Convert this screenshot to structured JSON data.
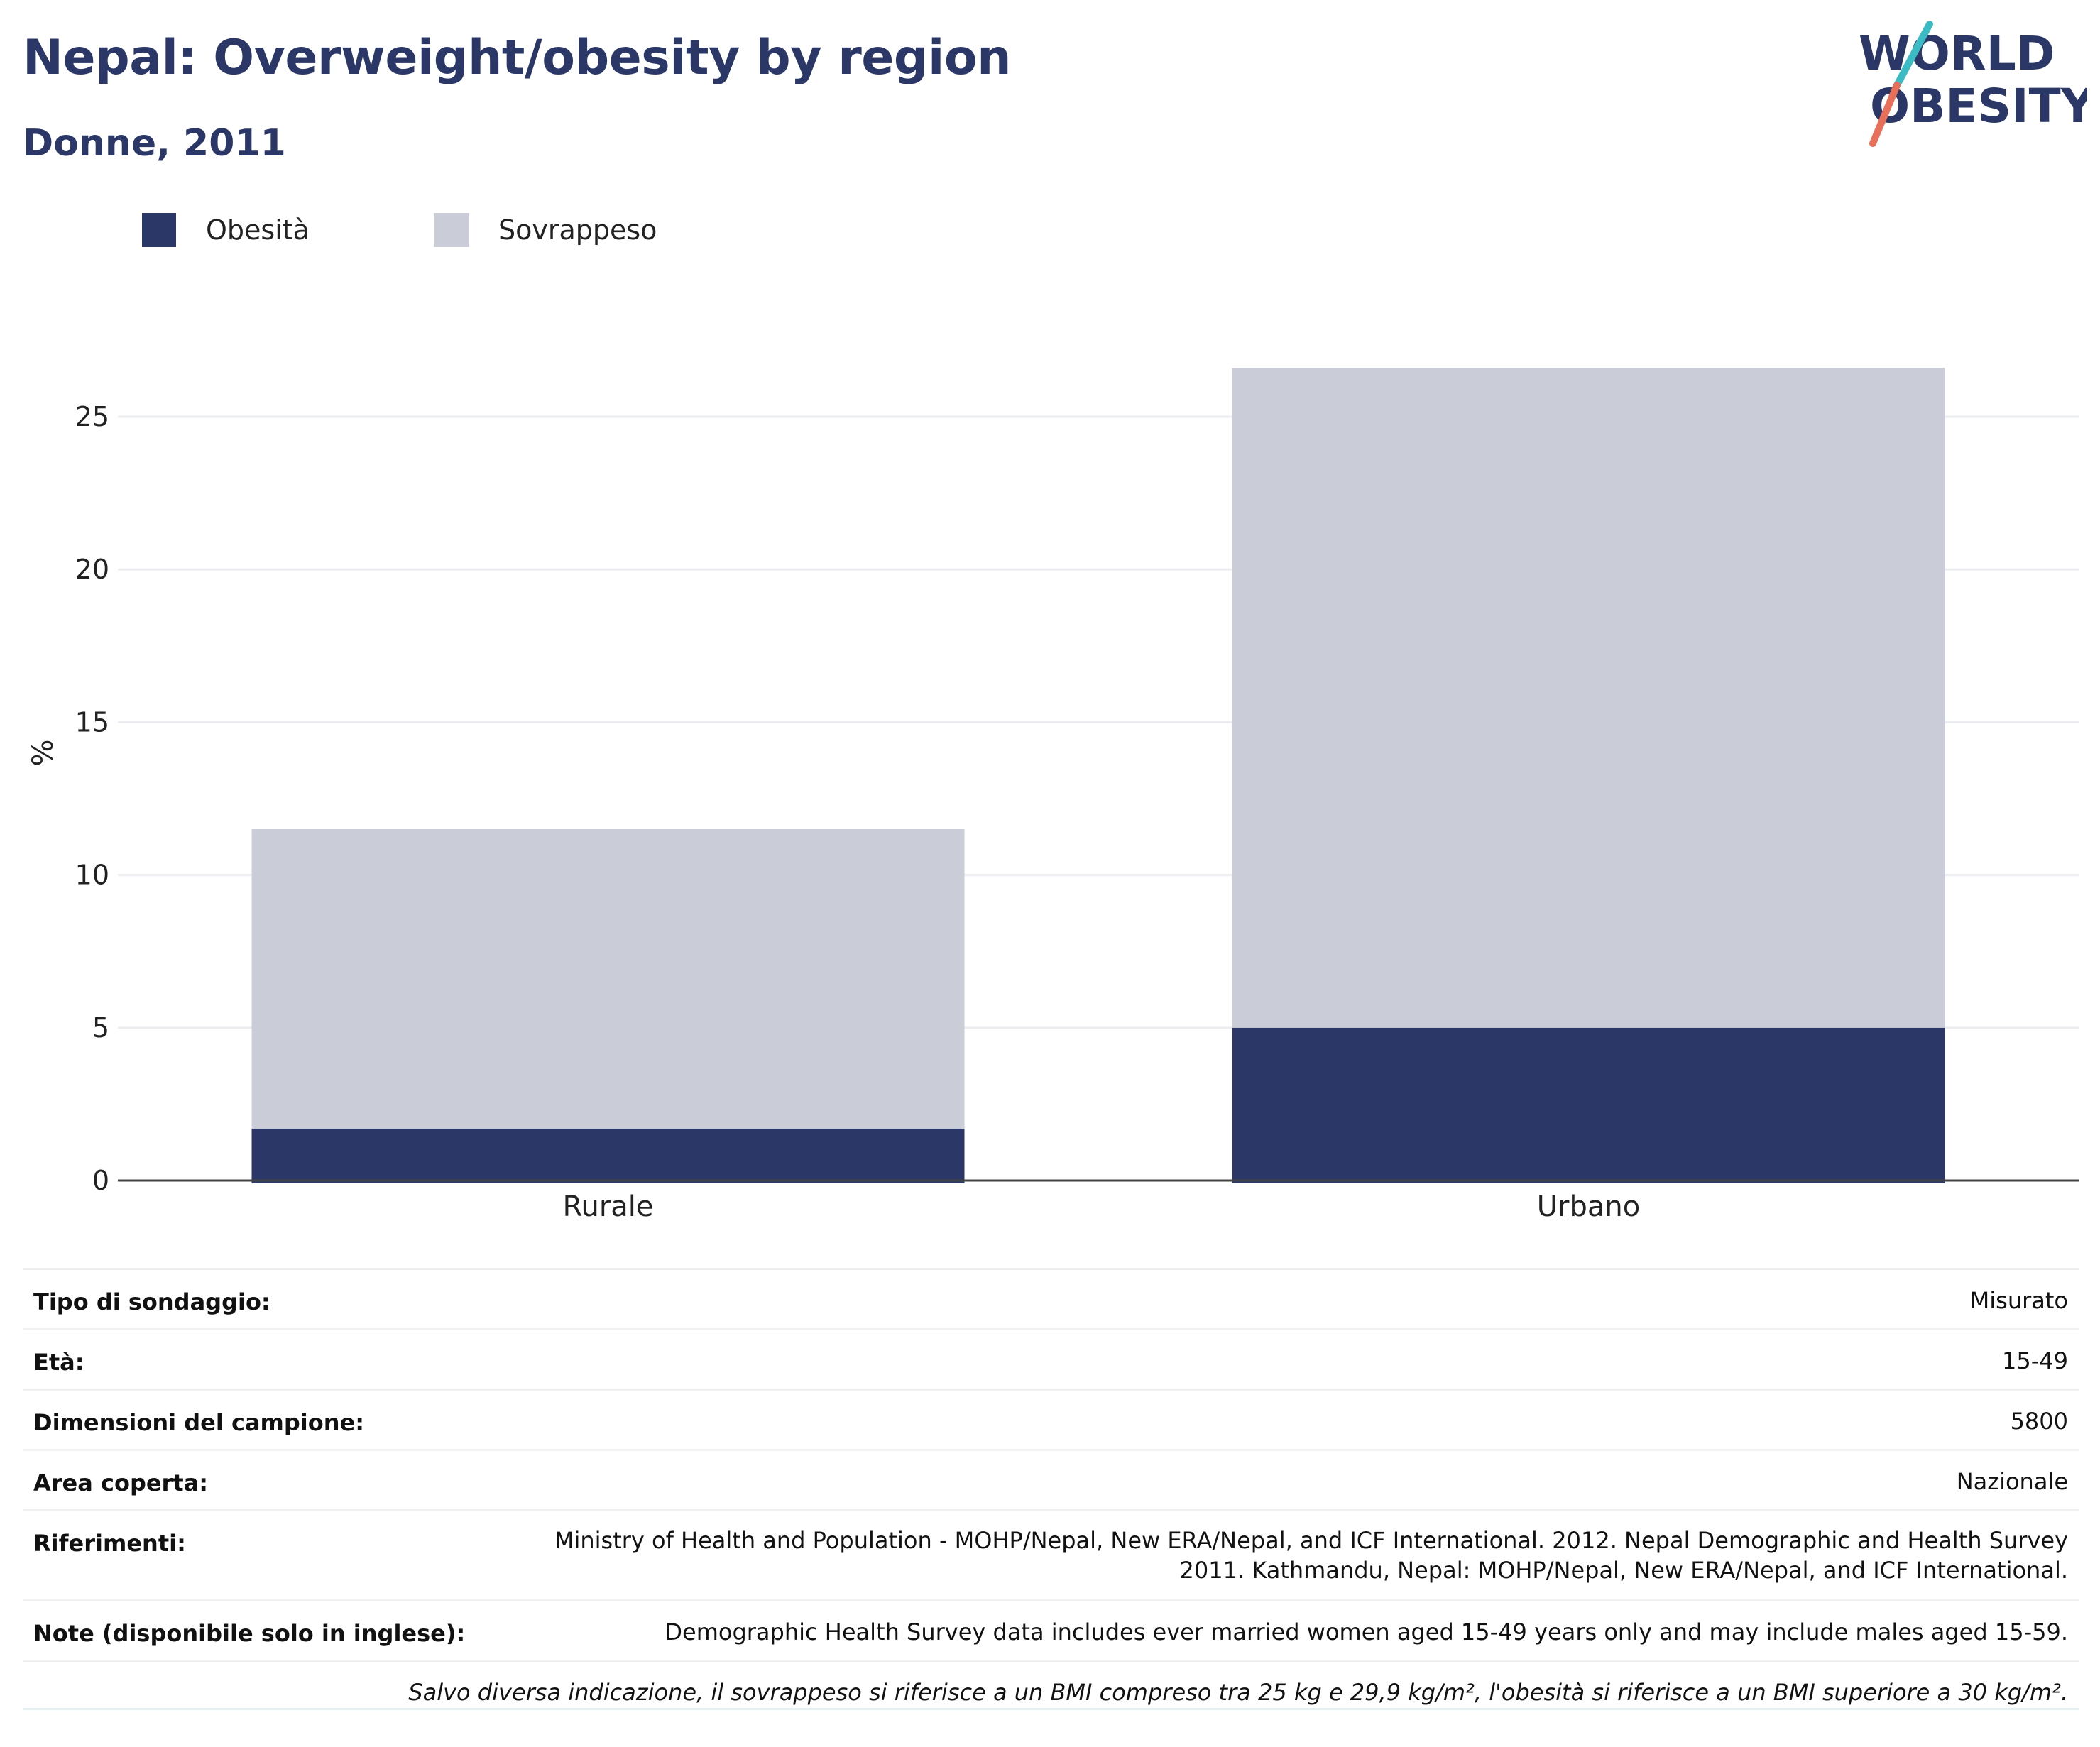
{
  "header": {
    "title": "Nepal: Overweight/obesity by region",
    "subtitle": "Donne, 2011"
  },
  "logo": {
    "line1": "WORLD",
    "line2": "OBESITY",
    "colors": {
      "text": "#2b3766",
      "slash_teal": "#3bbcc4",
      "slash_coral": "#e8705a"
    }
  },
  "legend": [
    {
      "name": "Obesità",
      "color": "#2b3766"
    },
    {
      "name": "Sovrappeso",
      "color": "#cacdd8"
    }
  ],
  "chart_data": {
    "type": "bar",
    "stacked": true,
    "categories": [
      "Rurale",
      "Urbano"
    ],
    "series": [
      {
        "name": "Obesità",
        "color": "#2b3766",
        "values": [
          1.7,
          5.0
        ]
      },
      {
        "name": "Sovrappeso",
        "color": "#cacdd8",
        "values": [
          9.8,
          21.6
        ]
      }
    ],
    "ylabel": "%",
    "ylim": [
      0,
      28
    ],
    "yticks": [
      0,
      5,
      10,
      15,
      20,
      25
    ],
    "grid": true,
    "legend_position": "top-left"
  },
  "info": {
    "rows": [
      {
        "label": "Tipo di sondaggio:",
        "value": "Misurato"
      },
      {
        "label": "Età:",
        "value": "15-49"
      },
      {
        "label": "Dimensioni del campione:",
        "value": "5800"
      },
      {
        "label": "Area coperta:",
        "value": "Nazionale"
      },
      {
        "label": "Riferimenti:",
        "value_line1": "Ministry of Health and Population - MOHP/Nepal, New ERA/Nepal, and ICF International. 2012. Nepal Demographic and Health Survey",
        "value_line2": "2011. Kathmandu, Nepal: MOHP/Nepal, New ERA/Nepal, and ICF International."
      },
      {
        "label": "Note (disponibile solo in inglese):",
        "value": "Demographic Health Survey data includes ever married women aged 15-49 years only and may include males aged 15-59."
      }
    ],
    "footnote": "Salvo diversa indicazione, il sovrappeso si riferisce a un BMI compreso tra 25 kg e 29,9 kg/m², l'obesità si riferisce a un BMI superiore a 30 kg/m²."
  }
}
